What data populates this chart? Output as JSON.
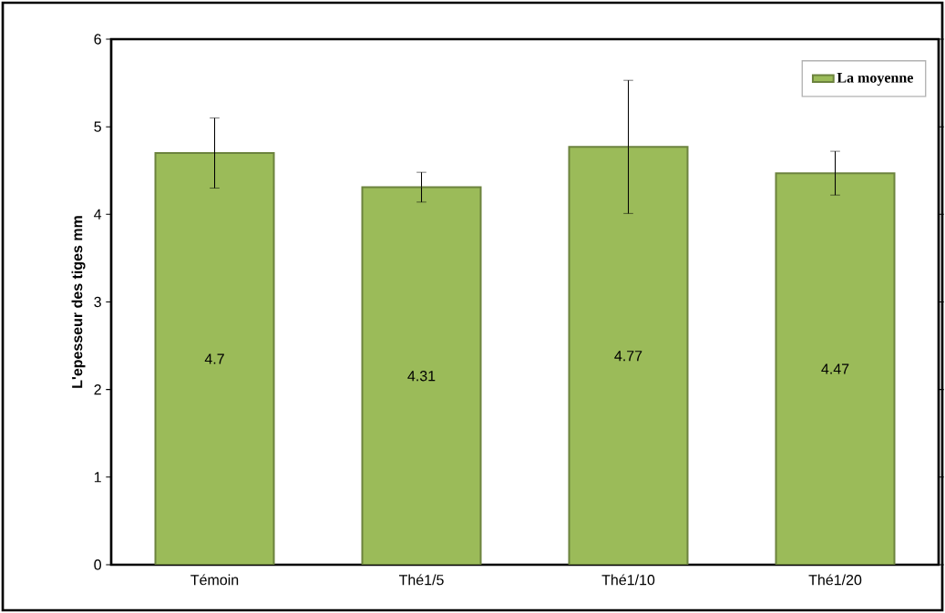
{
  "chart_data": {
    "type": "bar",
    "ylabel": "L'epesseur des tiges mm",
    "categories": [
      "Témoin",
      "Thé1/5",
      "Thé1/10",
      "Thé1/20"
    ],
    "series": [
      {
        "name": "La moyenne",
        "color": "#9bbb59",
        "values": [
          4.7,
          4.31,
          4.77,
          4.47
        ],
        "errors": [
          0.4,
          0.17,
          0.76,
          0.25
        ]
      }
    ],
    "ylim": [
      0,
      6
    ],
    "yticks": [
      0,
      1,
      2,
      3,
      4,
      5,
      6
    ],
    "grid": false,
    "legend": "top right",
    "data_labels": true
  }
}
